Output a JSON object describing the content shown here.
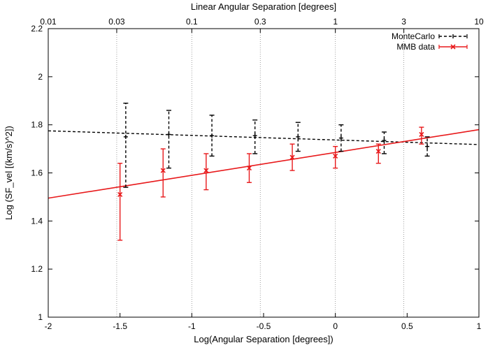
{
  "chart_data": {
    "type": "scatter",
    "title": "",
    "xlabel": "Log(Angular Separation [degrees])",
    "ylabel": "Log (SF_vel [(km/s)^2])",
    "x2label": "Linear Angular Separation [degrees]",
    "xlim": [
      -2,
      1
    ],
    "ylim": [
      1,
      2.2
    ],
    "x_ticks": [
      -2,
      -1.5,
      -1,
      -0.5,
      0,
      0.5,
      1
    ],
    "x_tick_labels": [
      "-2",
      "-1.5",
      "-1",
      "-0.5",
      "0",
      "0.5",
      "1"
    ],
    "y_ticks": [
      1,
      1.2,
      1.4,
      1.6,
      1.8,
      2,
      2.2
    ],
    "y_tick_labels": [
      "1",
      "1.2",
      "1.4",
      "1.6",
      "1.8",
      "2",
      "2.2"
    ],
    "x2_ticks": [
      -2,
      -1.523,
      -1,
      -0.523,
      0,
      0.477,
      1
    ],
    "x2_tick_labels": [
      "0.01",
      "0.03",
      "0.1",
      "0.3",
      "1",
      "3",
      "10"
    ],
    "grid": "vertical dotted lines at top-axis ticks",
    "legend_position": "top-right",
    "series": [
      {
        "name": "MonteCarlo",
        "color": "#000000",
        "style": "dashed errorbars",
        "marker": "plus",
        "points": [
          {
            "x": -1.46,
            "y": 1.75,
            "ylow": 1.54,
            "yhigh": 1.89
          },
          {
            "x": -1.16,
            "y": 1.76,
            "ylow": 1.62,
            "yhigh": 1.86
          },
          {
            "x": -0.86,
            "y": 1.755,
            "ylow": 1.67,
            "yhigh": 1.84
          },
          {
            "x": -0.56,
            "y": 1.755,
            "ylow": 1.68,
            "yhigh": 1.82
          },
          {
            "x": -0.26,
            "y": 1.75,
            "ylow": 1.69,
            "yhigh": 1.81
          },
          {
            "x": 0.04,
            "y": 1.745,
            "ylow": 1.69,
            "yhigh": 1.8
          },
          {
            "x": 0.34,
            "y": 1.735,
            "ylow": 1.68,
            "yhigh": 1.77
          },
          {
            "x": 0.64,
            "y": 1.71,
            "ylow": 1.67,
            "yhigh": 1.75
          }
        ],
        "fit": {
          "x": [
            -2,
            1
          ],
          "y": [
            1.775,
            1.718
          ],
          "style": "dashed"
        }
      },
      {
        "name": "MMB data",
        "color": "#e8191b",
        "style": "solid errorbars",
        "marker": "x",
        "points": [
          {
            "x": -1.5,
            "y": 1.51,
            "ylow": 1.32,
            "yhigh": 1.64
          },
          {
            "x": -1.2,
            "y": 1.61,
            "ylow": 1.5,
            "yhigh": 1.7
          },
          {
            "x": -0.9,
            "y": 1.61,
            "ylow": 1.53,
            "yhigh": 1.68
          },
          {
            "x": -0.6,
            "y": 1.62,
            "ylow": 1.56,
            "yhigh": 1.68
          },
          {
            "x": -0.3,
            "y": 1.665,
            "ylow": 1.61,
            "yhigh": 1.72
          },
          {
            "x": 0.0,
            "y": 1.67,
            "ylow": 1.62,
            "yhigh": 1.71
          },
          {
            "x": 0.3,
            "y": 1.69,
            "ylow": 1.64,
            "yhigh": 1.72
          },
          {
            "x": 0.6,
            "y": 1.76,
            "ylow": 1.72,
            "yhigh": 1.79
          }
        ],
        "fit": {
          "x": [
            -2,
            1
          ],
          "y": [
            1.495,
            1.78
          ],
          "style": "solid"
        }
      }
    ]
  }
}
